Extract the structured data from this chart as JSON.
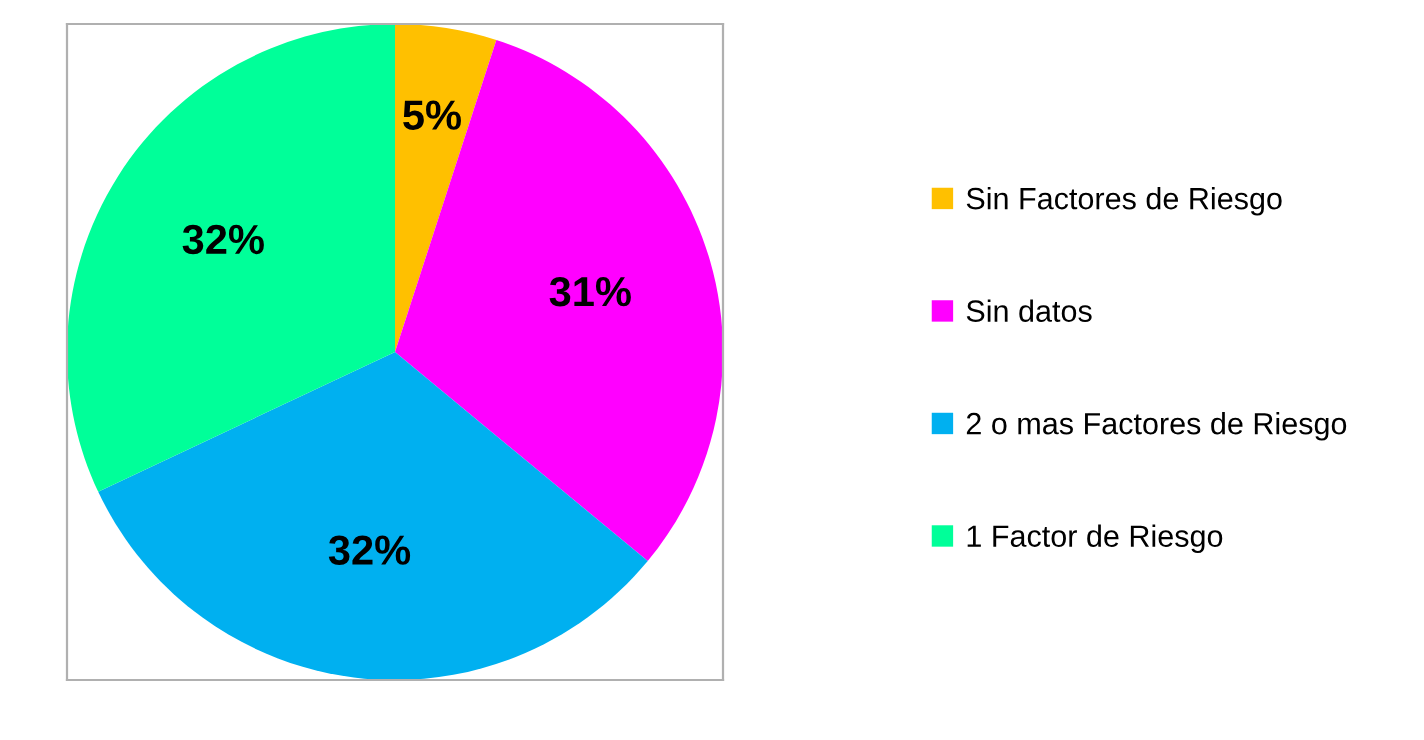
{
  "chart_data": {
    "type": "pie",
    "categories": [
      "Sin Factores de Riesgo",
      "Sin datos",
      "2 o mas Factores de Riesgo",
      "1 Factor de Riesgo"
    ],
    "values": [
      5,
      31,
      32,
      32
    ],
    "colors": [
      "#ffc000",
      "#ff00ff",
      "#00b0f0",
      "#00ff99"
    ],
    "value_labels": [
      "5%",
      "31%",
      "32%",
      "32%"
    ],
    "legend": "right"
  }
}
